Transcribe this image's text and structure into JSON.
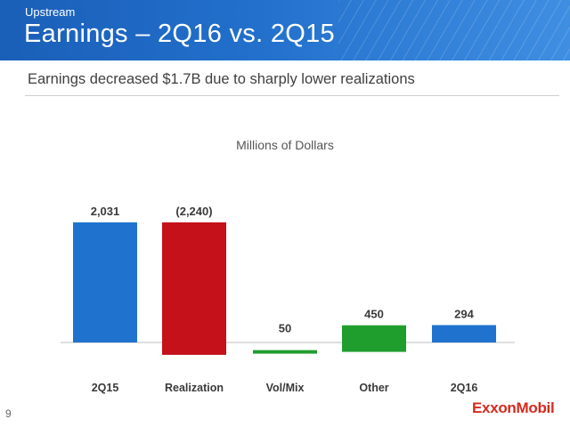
{
  "header": {
    "section": "Upstream",
    "title": "Earnings – 2Q16 vs. 2Q15"
  },
  "subtitle": "Earnings decreased $1.7B due to sharply lower realizations",
  "page_number": "9",
  "logo_text": "ExxonMobil",
  "colors": {
    "header_blue": "#1f68c2",
    "bar_blue": "#1f73cf",
    "bar_red": "#c4111a",
    "bar_green": "#1f9e2e",
    "logo_red": "#d52b1e"
  },
  "chart_data": {
    "type": "waterfall",
    "units_label": "Millions of Dollars",
    "categories": [
      "2Q15",
      "Realization",
      "Vol/Mix",
      "Other",
      "2Q16"
    ],
    "values": [
      2031,
      -2240,
      50,
      450,
      294
    ],
    "value_labels": [
      "2,031",
      "(2,240)",
      "50",
      "450",
      "294"
    ],
    "kinds": [
      "total",
      "delta",
      "delta",
      "delta",
      "total"
    ],
    "bar_colors": [
      "#1f73cf",
      "#c4111a",
      "#1f9e2e",
      "#1f9e2e",
      "#1f73cf"
    ],
    "ylim": [
      -300,
      2300
    ]
  }
}
